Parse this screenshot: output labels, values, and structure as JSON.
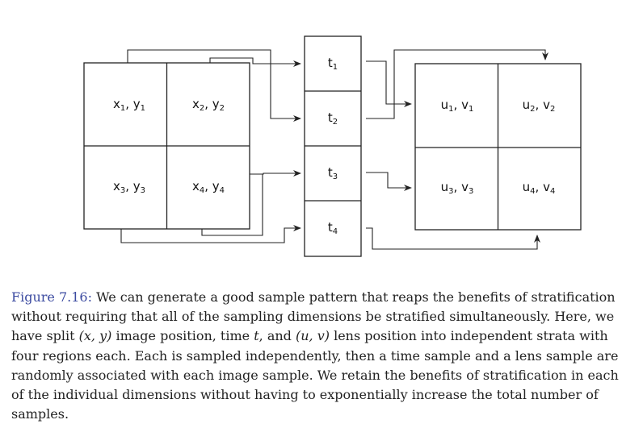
{
  "diagram": {
    "image_cells": [
      {
        "a": "x",
        "a_sub": "1",
        "b": "y",
        "b_sub": "1"
      },
      {
        "a": "x",
        "a_sub": "2",
        "b": "y",
        "b_sub": "2"
      },
      {
        "a": "x",
        "a_sub": "3",
        "b": "y",
        "b_sub": "3"
      },
      {
        "a": "x",
        "a_sub": "4",
        "b": "y",
        "b_sub": "4"
      }
    ],
    "time_cells": [
      {
        "a": "t",
        "a_sub": "1"
      },
      {
        "a": "t",
        "a_sub": "2"
      },
      {
        "a": "t",
        "a_sub": "3"
      },
      {
        "a": "t",
        "a_sub": "4"
      }
    ],
    "lens_cells": [
      {
        "a": "u",
        "a_sub": "1",
        "b": "v",
        "b_sub": "1"
      },
      {
        "a": "u",
        "a_sub": "2",
        "b": "v",
        "b_sub": "2"
      },
      {
        "a": "u",
        "a_sub": "3",
        "b": "v",
        "b_sub": "3"
      },
      {
        "a": "u",
        "a_sub": "4",
        "b": "v",
        "b_sub": "4"
      }
    ],
    "separator": ", "
  },
  "caption": {
    "label": "Figure 7.16:",
    "p1": " We can generate a good sample pattern that reaps the benefits of stratification without requiring that all of the sampling dimensions be stratified simultaneously. Here, we have split ",
    "m1": "(x, y)",
    "p2": " image position, time ",
    "m2": "t",
    "p3": ", and ",
    "m3": "(u, v)",
    "p4": " lens position into independent strata with four regions each. Each is sampled independently, then a time sample and a lens sample are randomly associated with each image sample. We retain the benefits of stratification in each of the individual dimensions without having to exponentially increase the total number of samples."
  }
}
